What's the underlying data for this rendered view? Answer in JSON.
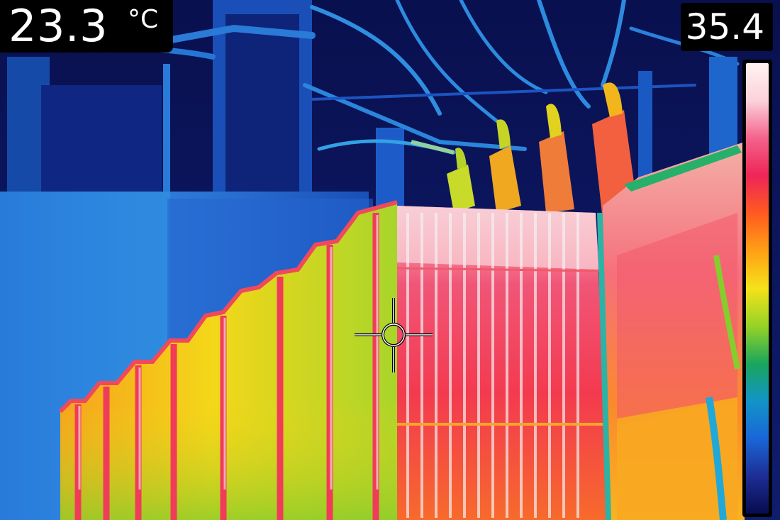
{
  "spot_temperature": {
    "value": "23.3",
    "unit": "°C"
  },
  "max_temperature": {
    "value": "35.4"
  },
  "palette": {
    "colors_top_to_bottom": [
      "#fff3ef",
      "#fbd2da",
      "#f3638a",
      "#ee2557",
      "#ff5a20",
      "#ffa015",
      "#f5e21a",
      "#97d326",
      "#1aa65c",
      "#1294c8",
      "#1966d8",
      "#1d2e94",
      "#070b4f"
    ]
  }
}
